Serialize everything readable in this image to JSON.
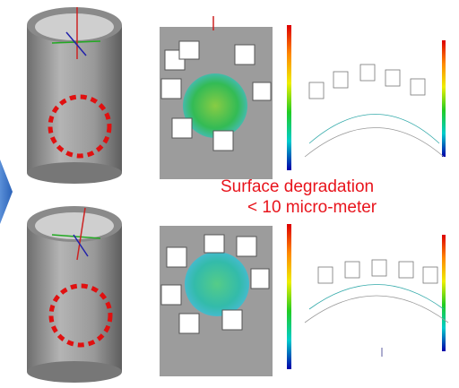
{
  "annotation": {
    "line1": "Surface degradation",
    "line2": "< 10 micro-meter"
  }
}
